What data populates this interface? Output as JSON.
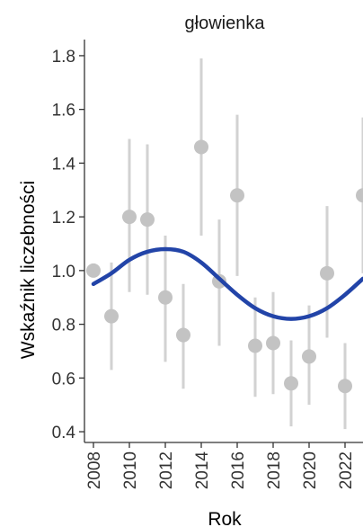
{
  "chart_data": {
    "type": "scatter",
    "title": "głowienka",
    "xlabel": "Rok",
    "ylabel": "Wskaźnik liczebności",
    "xlim": [
      2007.5,
      2023.0
    ],
    "ylim": [
      0.36,
      1.86
    ],
    "x_ticks": [
      2008,
      2010,
      2012,
      2014,
      2016,
      2018,
      2020,
      2022
    ],
    "x_tick_labels": [
      "2008",
      "2010",
      "2012",
      "2014",
      "2016",
      "2018",
      "2020",
      "2022"
    ],
    "y_ticks": [
      0.4,
      0.6,
      0.8,
      1.0,
      1.2,
      1.4,
      1.6,
      1.8
    ],
    "y_tick_labels": [
      "0.4",
      "0.6",
      "0.8",
      "1.0",
      "1.2",
      "1.4",
      "1.6",
      "1.8"
    ],
    "grid": false,
    "series": [
      {
        "values": [
          {
            "x": 2008,
            "y": 1.0,
            "lower": 1.0,
            "upper": 1.0
          },
          {
            "x": 2009,
            "y": 0.83,
            "lower": 0.63,
            "upper": 1.03
          },
          {
            "x": 2010,
            "y": 1.2,
            "lower": 0.92,
            "upper": 1.49
          },
          {
            "x": 2011,
            "y": 1.19,
            "lower": 0.91,
            "upper": 1.47
          },
          {
            "x": 2012,
            "y": 0.9,
            "lower": 0.66,
            "upper": 1.13
          },
          {
            "x": 2013,
            "y": 0.76,
            "lower": 0.56,
            "upper": 0.95
          },
          {
            "x": 2014,
            "y": 1.46,
            "lower": 1.13,
            "upper": 1.79
          },
          {
            "x": 2015,
            "y": 0.96,
            "lower": 0.72,
            "upper": 1.19
          },
          {
            "x": 2016,
            "y": 1.28,
            "lower": 0.98,
            "upper": 1.58
          },
          {
            "x": 2017,
            "y": 0.72,
            "lower": 0.53,
            "upper": 0.9
          },
          {
            "x": 2018,
            "y": 0.73,
            "lower": 0.54,
            "upper": 0.92
          },
          {
            "x": 2019,
            "y": 0.58,
            "lower": 0.42,
            "upper": 0.74
          },
          {
            "x": 2020,
            "y": 0.68,
            "lower": 0.5,
            "upper": 0.87
          },
          {
            "x": 2021,
            "y": 0.99,
            "lower": 0.75,
            "upper": 1.24
          },
          {
            "x": 2022,
            "y": 0.57,
            "lower": 0.41,
            "upper": 0.73
          },
          {
            "x": 2023,
            "y": 1.28,
            "lower": 0.99,
            "upper": 1.57
          }
        ]
      }
    ],
    "trend": {
      "type": "line",
      "x": [
        2008,
        2009,
        2010,
        2011,
        2012,
        2013,
        2014,
        2015,
        2016,
        2017,
        2018,
        2019,
        2020,
        2021,
        2022,
        2023
      ],
      "y": [
        0.95,
        0.99,
        1.04,
        1.07,
        1.08,
        1.07,
        1.03,
        0.97,
        0.91,
        0.86,
        0.83,
        0.82,
        0.83,
        0.86,
        0.91,
        0.97
      ]
    },
    "colors": {
      "points": "#c3c3c3",
      "error_bars": "#d2d2d2",
      "trend": "#2244a8",
      "axis": "#333333"
    }
  }
}
